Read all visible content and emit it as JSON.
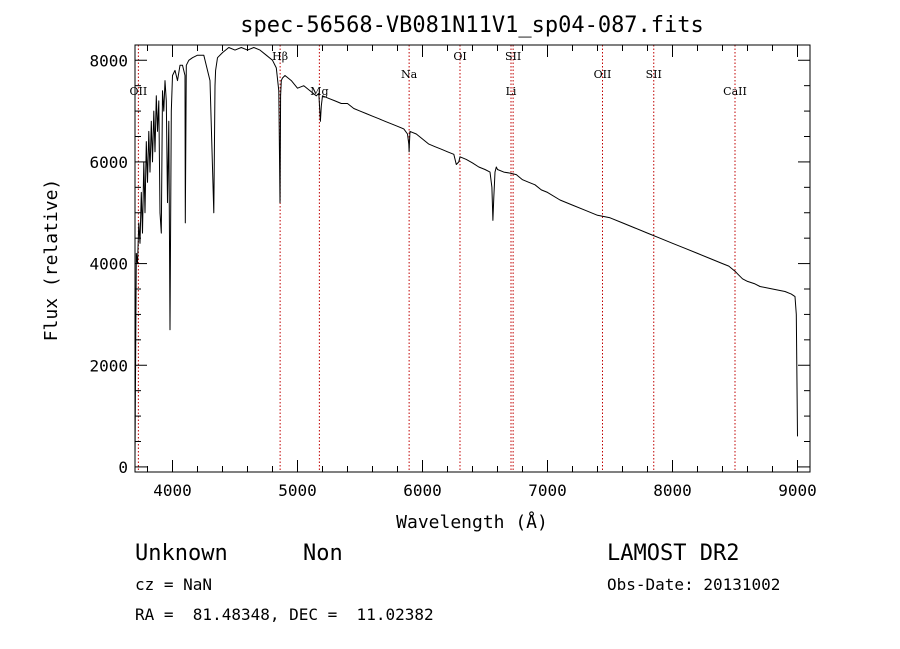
{
  "chart_data": {
    "type": "line",
    "title": "spec-56568-VB081N11V1_sp04-087.fits",
    "xlabel": "Wavelength (Å)",
    "ylabel": "Flux (relative)",
    "xlim": [
      3700,
      9100
    ],
    "ylim": [
      -100,
      8300
    ],
    "xticks": [
      4000,
      5000,
      6000,
      7000,
      8000,
      9000
    ],
    "yticks": [
      0,
      2000,
      4000,
      6000,
      8000
    ],
    "grid": false,
    "series": [
      {
        "x": [
          3700,
          3710,
          3720,
          3730,
          3740,
          3750,
          3760,
          3770,
          3780,
          3790,
          3800,
          3810,
          3820,
          3830,
          3840,
          3850,
          3860,
          3870,
          3880,
          3890,
          3900,
          3910,
          3920,
          3930,
          3940,
          3950,
          3960,
          3970,
          3980,
          3990,
          4000,
          4020,
          4040,
          4060,
          4080,
          4100,
          4102,
          4110,
          4130,
          4160,
          4200,
          4250,
          4300,
          4330,
          4340,
          4345,
          4360,
          4400,
          4450,
          4500,
          4550,
          4600,
          4650,
          4700,
          4750,
          4800,
          4830,
          4850,
          4860,
          4861,
          4865,
          4870,
          4880,
          4900,
          4950,
          5000,
          5050,
          5100,
          5150,
          5170,
          5183,
          5190,
          5200,
          5250,
          5300,
          5350,
          5400,
          5450,
          5500,
          5550,
          5600,
          5650,
          5700,
          5750,
          5800,
          5850,
          5880,
          5890,
          5893,
          5896,
          5900,
          5950,
          6000,
          6050,
          6100,
          6150,
          6200,
          6250,
          6270,
          6290,
          6300,
          6350,
          6400,
          6450,
          6500,
          6540,
          6555,
          6563,
          6570,
          6580,
          6590,
          6600,
          6650,
          6700,
          6750,
          6800,
          6850,
          6900,
          6950,
          7000,
          7100,
          7200,
          7300,
          7400,
          7500,
          7600,
          7700,
          7800,
          7900,
          8000,
          8100,
          8200,
          8300,
          8400,
          8450,
          8500,
          8520,
          8540,
          8560,
          8600,
          8660,
          8700,
          8800,
          8900,
          8950,
          8980,
          8990,
          9000
        ],
        "y": [
          200,
          4200,
          4000,
          4800,
          4400,
          5400,
          4600,
          6000,
          5000,
          6400,
          5600,
          6600,
          5800,
          6800,
          6000,
          7000,
          6200,
          7300,
          6600,
          7200,
          5000,
          4600,
          7400,
          7000,
          7600,
          7200,
          5200,
          6800,
          2700,
          7000,
          7700,
          7800,
          7600,
          7900,
          7900,
          7700,
          4800,
          7900,
          8000,
          8050,
          8100,
          8100,
          7600,
          5000,
          7500,
          7800,
          8050,
          8150,
          8250,
          8200,
          8250,
          8200,
          8250,
          8200,
          8100,
          8000,
          7850,
          7400,
          5200,
          5300,
          7300,
          7600,
          7650,
          7700,
          7600,
          7450,
          7500,
          7400,
          7300,
          7350,
          6800,
          7100,
          7300,
          7250,
          7200,
          7150,
          7150,
          7050,
          7000,
          6950,
          6900,
          6850,
          6800,
          6750,
          6700,
          6650,
          6550,
          6350,
          6200,
          6400,
          6600,
          6550,
          6450,
          6350,
          6300,
          6250,
          6200,
          6150,
          5950,
          6000,
          6100,
          6050,
          5980,
          5900,
          5850,
          5800,
          5500,
          4850,
          5300,
          5800,
          5900,
          5850,
          5800,
          5780,
          5750,
          5650,
          5600,
          5550,
          5450,
          5400,
          5250,
          5150,
          5050,
          4950,
          4900,
          4800,
          4700,
          4600,
          4500,
          4400,
          4300,
          4200,
          4100,
          4000,
          3950,
          3850,
          3800,
          3750,
          3700,
          3650,
          3600,
          3550,
          3500,
          3450,
          3400,
          3350,
          3000,
          600
        ]
      }
    ],
    "lines": [
      {
        "x": 3727,
        "label": "OII",
        "pos": "lower"
      },
      {
        "x": 4861,
        "label": "Hβ",
        "pos": "upper"
      },
      {
        "x": 5175,
        "label": "Mg",
        "pos": "lower"
      },
      {
        "x": 5893,
        "label": "Na",
        "pos": "middle"
      },
      {
        "x": 6300,
        "label": "OI",
        "pos": "upper"
      },
      {
        "x": 6708,
        "label": "Li",
        "pos": "lower"
      },
      {
        "x": 6725,
        "label": "SII",
        "pos": "upper"
      },
      {
        "x": 7440,
        "label": "OII",
        "pos": "middle"
      },
      {
        "x": 7850,
        "label": "SII",
        "pos": "middle"
      },
      {
        "x": 8500,
        "label": "CaII",
        "pos": "lower"
      }
    ]
  },
  "footer": {
    "object": "Unknown",
    "object_class": "Non",
    "survey": "LAMOST DR2",
    "cz": "cz = NaN",
    "obs_date": "Obs-Date: 20131002",
    "coords": "RA =  81.48348, DEC =  11.02382"
  },
  "colors": {
    "spectrum": "#000000",
    "line_marker": "#c00000",
    "axes": "#000000",
    "background": "#ffffff"
  }
}
